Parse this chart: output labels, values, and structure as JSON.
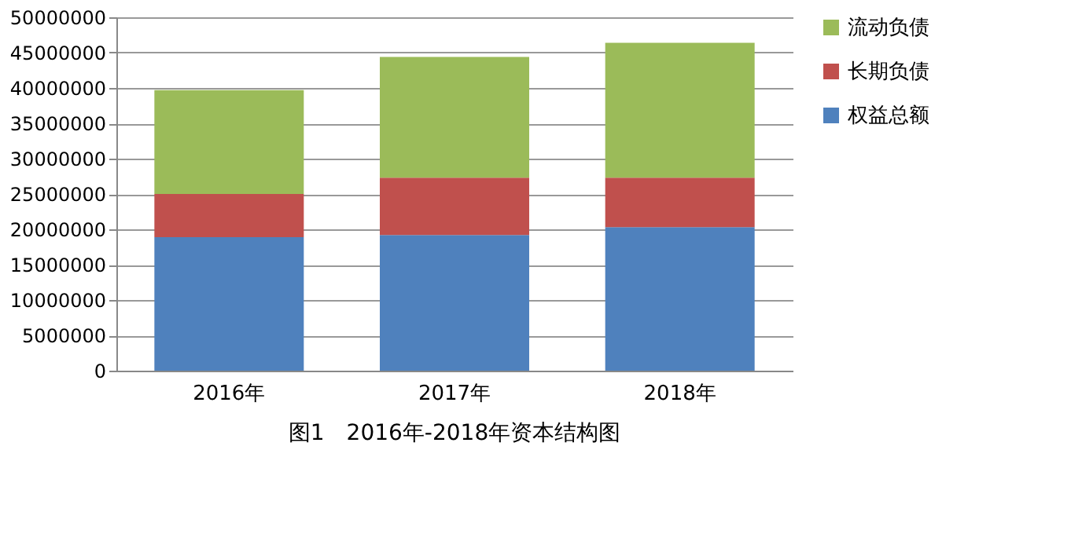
{
  "chart_data": {
    "type": "bar",
    "stacked": true,
    "categories": [
      "2016年",
      "2017年",
      "2018年"
    ],
    "series": [
      {
        "name": "权益总额",
        "color": "#4f81bd",
        "values": [
          18900000,
          19200000,
          20300000
        ]
      },
      {
        "name": "长期负债",
        "color": "#c0504d",
        "values": [
          6100000,
          8100000,
          7000000
        ]
      },
      {
        "name": "流动负债",
        "color": "#9bbb59",
        "values": [
          14700000,
          17100000,
          19100000
        ]
      }
    ],
    "ylim": [
      0,
      50000000
    ],
    "yticks": [
      0,
      5000000,
      10000000,
      15000000,
      20000000,
      25000000,
      30000000,
      35000000,
      40000000,
      45000000,
      50000000
    ],
    "grid": "y",
    "legend": "right",
    "annotations": [
      "图1　2016年-2018年资本结构图"
    ]
  }
}
